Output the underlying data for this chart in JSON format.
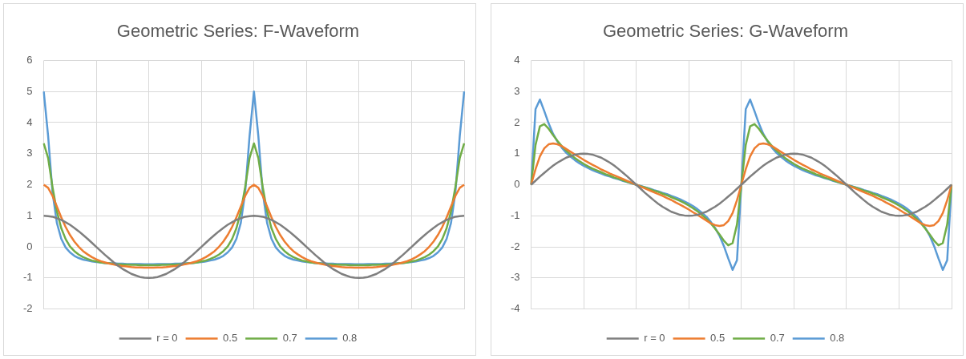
{
  "chart_data": [
    {
      "type": "line",
      "title": "Geometric Series: F-Waveform",
      "categories": [
        null,
        null,
        null,
        null,
        null,
        null,
        null,
        null,
        null,
        null,
        null,
        null,
        null,
        null,
        null,
        null,
        null,
        null,
        null,
        null,
        null,
        null,
        null,
        null,
        null,
        null,
        null,
        null,
        null,
        null,
        null,
        null,
        null,
        null,
        null,
        null,
        null,
        null,
        null,
        null,
        null,
        null,
        null,
        null,
        null,
        null,
        null,
        null,
        null,
        null,
        null,
        null,
        null,
        null,
        null,
        null,
        null,
        null,
        null,
        null,
        null,
        null,
        null,
        null,
        null,
        null,
        null,
        null,
        null,
        null,
        null,
        null,
        null,
        null,
        null,
        null,
        null,
        null,
        null,
        null,
        null,
        null,
        null,
        null,
        null,
        null,
        null,
        null,
        null,
        null,
        null,
        null,
        null,
        null,
        null,
        null,
        null
      ],
      "series": [
        {
          "name": "r = 0",
          "color": "#7f7f7f",
          "values": [
            1,
            0.99,
            0.97,
            0.92,
            0.87,
            0.79,
            0.71,
            0.61,
            0.5,
            0.38,
            0.26,
            0.13,
            0,
            -0.13,
            -0.26,
            -0.38,
            -0.5,
            -0.61,
            -0.71,
            -0.79,
            -0.87,
            -0.92,
            -0.97,
            -0.99,
            -1,
            -0.99,
            -0.97,
            -0.92,
            -0.87,
            -0.79,
            -0.71,
            -0.61,
            -0.5,
            -0.38,
            -0.26,
            -0.13,
            0,
            0.13,
            0.26,
            0.38,
            0.5,
            0.61,
            0.71,
            0.79,
            0.87,
            0.92,
            0.97,
            0.99,
            1,
            0.99,
            0.97,
            0.92,
            0.87,
            0.79,
            0.71,
            0.61,
            0.5,
            0.38,
            0.26,
            0.13,
            0,
            -0.13,
            -0.26,
            -0.38,
            -0.5,
            -0.61,
            -0.71,
            -0.79,
            -0.87,
            -0.92,
            -0.97,
            -0.99,
            -1,
            -0.99,
            -0.97,
            -0.92,
            -0.87,
            -0.79,
            -0.71,
            -0.61,
            -0.5,
            -0.38,
            -0.26,
            -0.13,
            0,
            0.13,
            0.26,
            0.38,
            0.5,
            0.61,
            0.71,
            0.79,
            0.87,
            0.92,
            0.97,
            0.99,
            1
          ]
        },
        {
          "name": "0.5",
          "color": "#ed7d31",
          "values": [
            2,
            1.9,
            1.64,
            1.3,
            0.95,
            0.64,
            0.38,
            0.17,
            0,
            -0.14,
            -0.24,
            -0.33,
            -0.4,
            -0.46,
            -0.5,
            -0.54,
            -0.57,
            -0.6,
            -0.62,
            -0.63,
            -0.65,
            -0.66,
            -0.66,
            -0.67,
            -0.67,
            -0.67,
            -0.66,
            -0.66,
            -0.65,
            -0.63,
            -0.62,
            -0.6,
            -0.57,
            -0.54,
            -0.5,
            -0.46,
            -0.4,
            -0.33,
            -0.24,
            -0.14,
            0,
            0.17,
            0.38,
            0.64,
            0.95,
            1.3,
            1.64,
            1.9,
            2,
            1.9,
            1.64,
            1.3,
            0.95,
            0.64,
            0.38,
            0.17,
            0,
            -0.14,
            -0.24,
            -0.33,
            -0.4,
            -0.46,
            -0.5,
            -0.54,
            -0.57,
            -0.6,
            -0.62,
            -0.63,
            -0.65,
            -0.66,
            -0.66,
            -0.67,
            -0.67,
            -0.67,
            -0.66,
            -0.66,
            -0.65,
            -0.63,
            -0.62,
            -0.6,
            -0.57,
            -0.54,
            -0.5,
            -0.46,
            -0.4,
            -0.33,
            -0.24,
            -0.14,
            0,
            0.17,
            0.38,
            0.64,
            0.95,
            1.3,
            1.64,
            1.9,
            2
          ]
        },
        {
          "name": "0.7",
          "color": "#70ad47",
          "values": [
            3.33,
            2.86,
            1.93,
            1.14,
            0.6,
            0.25,
            0.01,
            -0.14,
            -0.25,
            -0.33,
            -0.39,
            -0.44,
            -0.47,
            -0.5,
            -0.52,
            -0.53,
            -0.55,
            -0.56,
            -0.57,
            -0.57,
            -0.58,
            -0.58,
            -0.59,
            -0.59,
            -0.59,
            -0.59,
            -0.59,
            -0.58,
            -0.58,
            -0.57,
            -0.57,
            -0.56,
            -0.55,
            -0.53,
            -0.52,
            -0.5,
            -0.47,
            -0.44,
            -0.39,
            -0.33,
            -0.25,
            -0.14,
            0.01,
            0.25,
            0.6,
            1.14,
            1.93,
            2.86,
            3.33,
            2.86,
            1.93,
            1.14,
            0.6,
            0.25,
            0.01,
            -0.14,
            -0.25,
            -0.33,
            -0.39,
            -0.44,
            -0.47,
            -0.5,
            -0.52,
            -0.53,
            -0.55,
            -0.56,
            -0.57,
            -0.57,
            -0.58,
            -0.58,
            -0.59,
            -0.59,
            -0.59,
            -0.59,
            -0.59,
            -0.58,
            -0.58,
            -0.57,
            -0.57,
            -0.56,
            -0.55,
            -0.53,
            -0.52,
            -0.5,
            -0.47,
            -0.44,
            -0.39,
            -0.33,
            -0.25,
            -0.14,
            0.01,
            0.25,
            0.6,
            1.14,
            1.93,
            2.86,
            3.33
          ]
        },
        {
          "name": "0.8",
          "color": "#5b9bd5",
          "values": [
            5,
            3.57,
            1.76,
            0.77,
            0.26,
            -0.02,
            -0.18,
            -0.29,
            -0.36,
            -0.41,
            -0.44,
            -0.47,
            -0.49,
            -0.5,
            -0.52,
            -0.53,
            -0.53,
            -0.54,
            -0.54,
            -0.55,
            -0.55,
            -0.55,
            -0.55,
            -0.56,
            -0.56,
            -0.56,
            -0.55,
            -0.55,
            -0.55,
            -0.55,
            -0.54,
            -0.54,
            -0.53,
            -0.53,
            -0.52,
            -0.5,
            -0.49,
            -0.47,
            -0.44,
            -0.41,
            -0.36,
            -0.29,
            -0.18,
            -0.02,
            0.26,
            0.77,
            1.76,
            3.57,
            5,
            3.57,
            1.76,
            0.77,
            0.26,
            -0.02,
            -0.18,
            -0.29,
            -0.36,
            -0.41,
            -0.44,
            -0.47,
            -0.49,
            -0.5,
            -0.52,
            -0.53,
            -0.53,
            -0.54,
            -0.54,
            -0.55,
            -0.55,
            -0.55,
            -0.55,
            -0.56,
            -0.56,
            -0.56,
            -0.55,
            -0.55,
            -0.55,
            -0.55,
            -0.54,
            -0.54,
            -0.53,
            -0.53,
            -0.52,
            -0.5,
            -0.49,
            -0.47,
            -0.44,
            -0.41,
            -0.36,
            -0.29,
            -0.18,
            -0.02,
            0.26,
            0.77,
            1.76,
            3.57,
            5
          ]
        }
      ],
      "ylim": [
        -2,
        6
      ],
      "yticks": [
        -2,
        -1,
        0,
        1,
        2,
        3,
        4,
        5,
        6
      ],
      "grid": true,
      "legend": "bottom",
      "marker": "none",
      "line_style": "solid"
    },
    {
      "type": "line",
      "title": "Geometric Series: G-Waveform",
      "categories": [
        null,
        null,
        null,
        null,
        null,
        null,
        null,
        null,
        null,
        null,
        null,
        null,
        null,
        null,
        null,
        null,
        null,
        null,
        null,
        null,
        null,
        null,
        null,
        null,
        null,
        null,
        null,
        null,
        null,
        null,
        null,
        null,
        null,
        null,
        null,
        null,
        null,
        null,
        null,
        null,
        null,
        null,
        null,
        null,
        null,
        null,
        null,
        null,
        null,
        null,
        null,
        null,
        null,
        null,
        null,
        null,
        null,
        null,
        null,
        null,
        null,
        null,
        null,
        null,
        null,
        null,
        null,
        null,
        null,
        null,
        null,
        null,
        null,
        null,
        null,
        null,
        null,
        null,
        null,
        null,
        null,
        null,
        null,
        null,
        null,
        null,
        null,
        null,
        null,
        null,
        null,
        null,
        null,
        null,
        null,
        null,
        null
      ],
      "series": [
        {
          "name": "r = 0",
          "color": "#7f7f7f",
          "values": [
            0,
            0.13,
            0.26,
            0.38,
            0.5,
            0.61,
            0.71,
            0.79,
            0.87,
            0.92,
            0.97,
            0.99,
            1,
            0.99,
            0.97,
            0.92,
            0.87,
            0.79,
            0.71,
            0.61,
            0.5,
            0.38,
            0.26,
            0.13,
            0,
            -0.13,
            -0.26,
            -0.38,
            -0.5,
            -0.61,
            -0.71,
            -0.79,
            -0.87,
            -0.92,
            -0.97,
            -0.99,
            -1,
            -0.99,
            -0.97,
            -0.92,
            -0.87,
            -0.79,
            -0.71,
            -0.61,
            -0.5,
            -0.38,
            -0.26,
            -0.13,
            0,
            0.13,
            0.26,
            0.38,
            0.5,
            0.61,
            0.71,
            0.79,
            0.87,
            0.92,
            0.97,
            0.99,
            1,
            0.99,
            0.97,
            0.92,
            0.87,
            0.79,
            0.71,
            0.61,
            0.5,
            0.38,
            0.26,
            0.13,
            0,
            -0.13,
            -0.26,
            -0.38,
            -0.5,
            -0.61,
            -0.71,
            -0.79,
            -0.87,
            -0.92,
            -0.97,
            -0.99,
            -1,
            -0.99,
            -0.97,
            -0.92,
            -0.87,
            -0.79,
            -0.71,
            -0.61,
            -0.5,
            -0.38,
            -0.26,
            -0.13,
            0
          ]
        },
        {
          "name": "0.5",
          "color": "#ed7d31",
          "values": [
            0,
            0.5,
            0.91,
            1.17,
            1.3,
            1.33,
            1.3,
            1.24,
            1.15,
            1.06,
            0.97,
            0.89,
            0.8,
            0.72,
            0.64,
            0.57,
            0.49,
            0.43,
            0.36,
            0.3,
            0.24,
            0.18,
            0.12,
            0.06,
            0,
            -0.06,
            -0.12,
            -0.18,
            -0.24,
            -0.3,
            -0.36,
            -0.43,
            -0.49,
            -0.57,
            -0.64,
            -0.72,
            -0.8,
            -0.89,
            -0.97,
            -1.06,
            -1.15,
            -1.24,
            -1.3,
            -1.33,
            -1.3,
            -1.17,
            -0.91,
            -0.5,
            0,
            0.5,
            0.91,
            1.17,
            1.3,
            1.33,
            1.3,
            1.24,
            1.15,
            1.06,
            0.97,
            0.89,
            0.8,
            0.72,
            0.64,
            0.57,
            0.49,
            0.43,
            0.36,
            0.3,
            0.24,
            0.18,
            0.12,
            0.06,
            0,
            -0.06,
            -0.12,
            -0.18,
            -0.24,
            -0.3,
            -0.36,
            -0.43,
            -0.49,
            -0.57,
            -0.64,
            -0.72,
            -0.8,
            -0.89,
            -0.97,
            -1.06,
            -1.15,
            -1.24,
            -1.3,
            -1.33,
            -1.3,
            -1.17,
            -0.91,
            -0.5,
            0
          ]
        },
        {
          "name": "0.7",
          "color": "#70ad47",
          "values": [
            0,
            1.28,
            1.88,
            1.95,
            1.8,
            1.6,
            1.41,
            1.24,
            1.1,
            0.97,
            0.86,
            0.76,
            0.67,
            0.59,
            0.52,
            0.46,
            0.4,
            0.34,
            0.29,
            0.23,
            0.19,
            0.14,
            0.09,
            0.05,
            0,
            -0.05,
            -0.09,
            -0.14,
            -0.19,
            -0.23,
            -0.29,
            -0.34,
            -0.4,
            -0.46,
            -0.52,
            -0.59,
            -0.67,
            -0.76,
            -0.86,
            -0.97,
            -1.1,
            -1.24,
            -1.41,
            -1.6,
            -1.8,
            -1.95,
            -1.88,
            -1.28,
            0,
            1.28,
            1.88,
            1.95,
            1.8,
            1.6,
            1.41,
            1.24,
            1.1,
            0.97,
            0.86,
            0.76,
            0.67,
            0.59,
            0.52,
            0.46,
            0.4,
            0.34,
            0.29,
            0.23,
            0.19,
            0.14,
            0.09,
            0.05,
            0,
            -0.05,
            -0.09,
            -0.14,
            -0.19,
            -0.23,
            -0.29,
            -0.34,
            -0.4,
            -0.46,
            -0.52,
            -0.59,
            -0.67,
            -0.76,
            -0.86,
            -0.97,
            -1.1,
            -1.24,
            -1.41,
            -1.6,
            -1.8,
            -1.95,
            -1.88,
            -1.28,
            0
          ]
        },
        {
          "name": "0.8",
          "color": "#5b9bd5",
          "values": [
            0,
            2.43,
            2.74,
            2.37,
            1.97,
            1.64,
            1.39,
            1.19,
            1.03,
            0.9,
            0.79,
            0.69,
            0.61,
            0.54,
            0.47,
            0.41,
            0.36,
            0.3,
            0.26,
            0.21,
            0.17,
            0.12,
            0.08,
            0.04,
            0,
            -0.04,
            -0.08,
            -0.12,
            -0.17,
            -0.21,
            -0.26,
            -0.3,
            -0.36,
            -0.41,
            -0.47,
            -0.54,
            -0.61,
            -0.69,
            -0.79,
            -0.9,
            -1.03,
            -1.19,
            -1.39,
            -1.64,
            -1.97,
            -2.37,
            -2.74,
            -2.43,
            0,
            2.43,
            2.74,
            2.37,
            1.97,
            1.64,
            1.39,
            1.19,
            1.03,
            0.9,
            0.79,
            0.69,
            0.61,
            0.54,
            0.47,
            0.41,
            0.36,
            0.3,
            0.26,
            0.21,
            0.17,
            0.12,
            0.08,
            0.04,
            0,
            -0.04,
            -0.08,
            -0.12,
            -0.17,
            -0.21,
            -0.26,
            -0.3,
            -0.36,
            -0.41,
            -0.47,
            -0.54,
            -0.61,
            -0.69,
            -0.79,
            -0.9,
            -1.03,
            -1.19,
            -1.39,
            -1.64,
            -1.97,
            -2.37,
            -2.74,
            -2.43,
            0
          ]
        }
      ],
      "ylim": [
        -4,
        4
      ],
      "yticks": [
        -4,
        -3,
        -2,
        -1,
        0,
        1,
        2,
        3,
        4
      ],
      "grid": true,
      "legend": "bottom",
      "marker": "none",
      "line_style": "solid"
    }
  ]
}
